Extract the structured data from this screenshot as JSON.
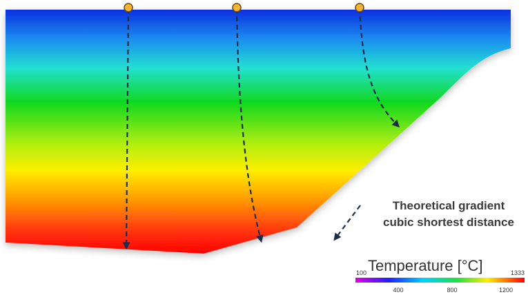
{
  "annotation": {
    "line1": "Theoretical gradient",
    "line2": "cubic shortest distance"
  },
  "legend": {
    "title": "Temperature [°C]",
    "min_label": "100",
    "max_label": "1333",
    "tick_labels": [
      "400",
      "800",
      "1200"
    ]
  }
}
